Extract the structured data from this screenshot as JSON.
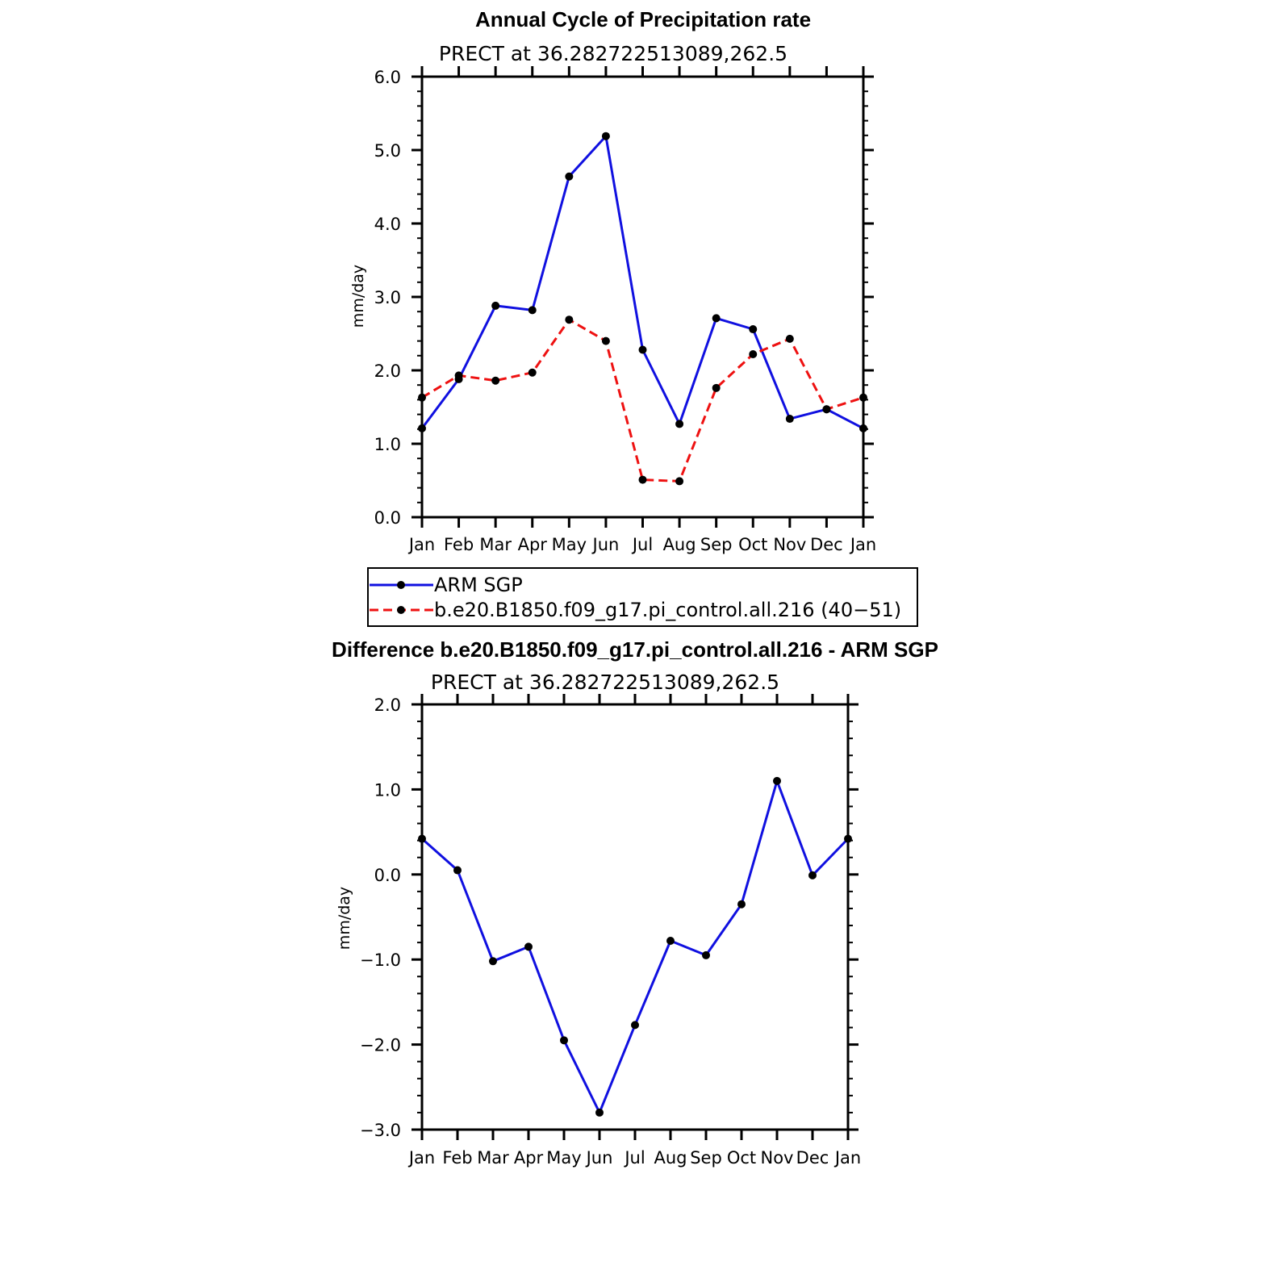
{
  "chart_data": [
    {
      "type": "line",
      "title": "Annual Cycle of Precipitation rate",
      "subtitle": "PRECT at 36.282722513089,262.5",
      "ylabel": "mm/day",
      "ylim": [
        0,
        6
      ],
      "yticks": [
        "0.0",
        "1.0",
        "2.0",
        "3.0",
        "4.0",
        "5.0",
        "6.0"
      ],
      "categories": [
        "Jan",
        "Feb",
        "Mar",
        "Apr",
        "May",
        "Jun",
        "Jul",
        "Aug",
        "Sep",
        "Oct",
        "Nov",
        "Dec",
        "Jan"
      ],
      "series": [
        {
          "name": "ARM SGP",
          "color": "#1010e0",
          "dash": "solid",
          "values": [
            1.21,
            1.88,
            2.88,
            2.82,
            4.64,
            5.19,
            2.28,
            1.27,
            2.71,
            2.56,
            1.34,
            1.47,
            1.21
          ]
        },
        {
          "name": "b.e20.B1850.f09_g17.pi_control.all.216 (40−51)",
          "color": "#ee1111",
          "dash": "dashed",
          "values": [
            1.63,
            1.93,
            1.86,
            1.97,
            2.69,
            2.4,
            0.51,
            0.49,
            1.76,
            2.22,
            2.43,
            1.47,
            1.63
          ]
        }
      ],
      "legend": "below",
      "grid": false
    },
    {
      "type": "line",
      "title": "Difference b.e20.B1850.f09_g17.pi_control.all.216 - ARM SGP",
      "subtitle": "PRECT at 36.282722513089,262.5",
      "ylabel": "mm/day",
      "ylim": [
        -3,
        2
      ],
      "yticks": [
        "−3.0",
        "−2.0",
        "−1.0",
        "0.0",
        "1.0",
        "2.0"
      ],
      "categories": [
        "Jan",
        "Feb",
        "Mar",
        "Apr",
        "May",
        "Jun",
        "Jul",
        "Aug",
        "Sep",
        "Oct",
        "Nov",
        "Dec",
        "Jan"
      ],
      "series": [
        {
          "color": "#1010e0",
          "dash": "solid",
          "values": [
            0.42,
            0.05,
            -1.02,
            -0.85,
            -1.95,
            -2.8,
            -1.77,
            -0.78,
            -0.95,
            -0.35,
            1.1,
            -0.01,
            0.42
          ]
        }
      ],
      "grid": false
    }
  ]
}
